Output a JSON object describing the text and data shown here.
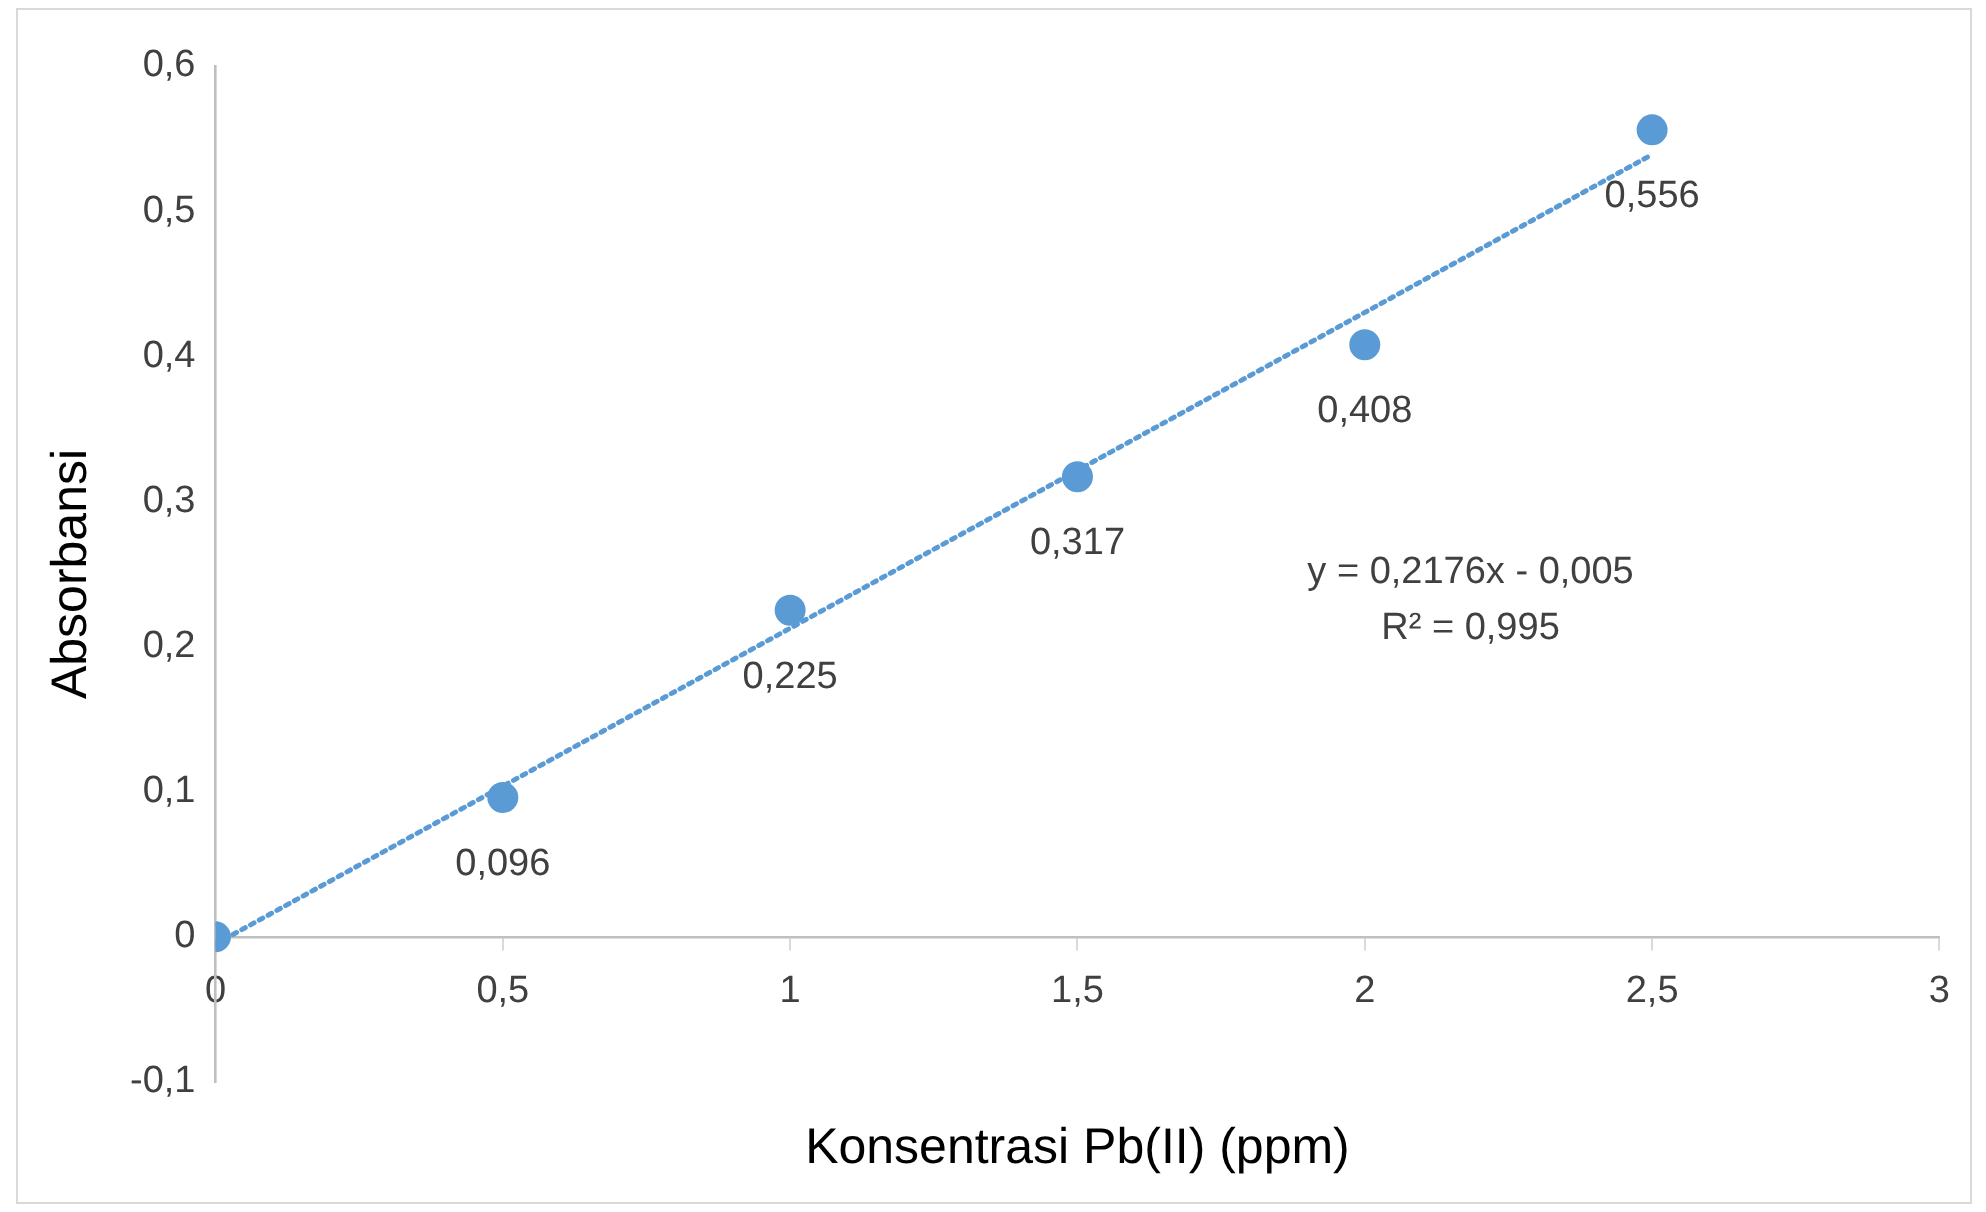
{
  "chart_data": {
    "type": "scatter",
    "xlabel": "Konsentrasi Pb(II) (ppm)",
    "ylabel": "Absorbansi",
    "x": [
      0,
      0.5,
      1,
      1.5,
      2,
      2.5
    ],
    "series": [
      {
        "type": "scatter",
        "color": "#5b9bd5",
        "marker": "circle",
        "values": [
          0,
          0.096,
          0.225,
          0.317,
          0.408,
          0.556
        ],
        "value_labels": [
          null,
          "0,096",
          "0,225",
          "0,317",
          "0,408",
          "0,556"
        ]
      },
      {
        "type": "line",
        "color": "#5b9bd5",
        "line_style": "dotted",
        "marker": "none",
        "x": [
          0,
          2.5
        ],
        "values": [
          -0.005,
          0.539
        ]
      }
    ],
    "xlim": [
      0,
      3
    ],
    "xticks": [
      0,
      {
        "value": 0.5,
        "label": "0,5"
      },
      1,
      {
        "value": 1.5,
        "label": "1,5"
      },
      2,
      {
        "value": 2.5,
        "label": "2,5"
      },
      3
    ],
    "ylim": [
      -0.1,
      0.6
    ],
    "yticks": [
      {
        "value": -0.1,
        "label": "-0,1"
      },
      0,
      {
        "value": 0.1,
        "label": "0,1"
      },
      {
        "value": 0.2,
        "label": "0,2"
      },
      {
        "value": 0.3,
        "label": "0,3"
      },
      {
        "value": 0.4,
        "label": "0,4"
      },
      {
        "value": 0.5,
        "label": "0,5"
      },
      {
        "value": 0.6,
        "label": "0,6"
      }
    ],
    "grid": false,
    "legend": false,
    "annotations": [
      "y = 0,2176x - 0,005",
      "R² = 0,995"
    ]
  }
}
